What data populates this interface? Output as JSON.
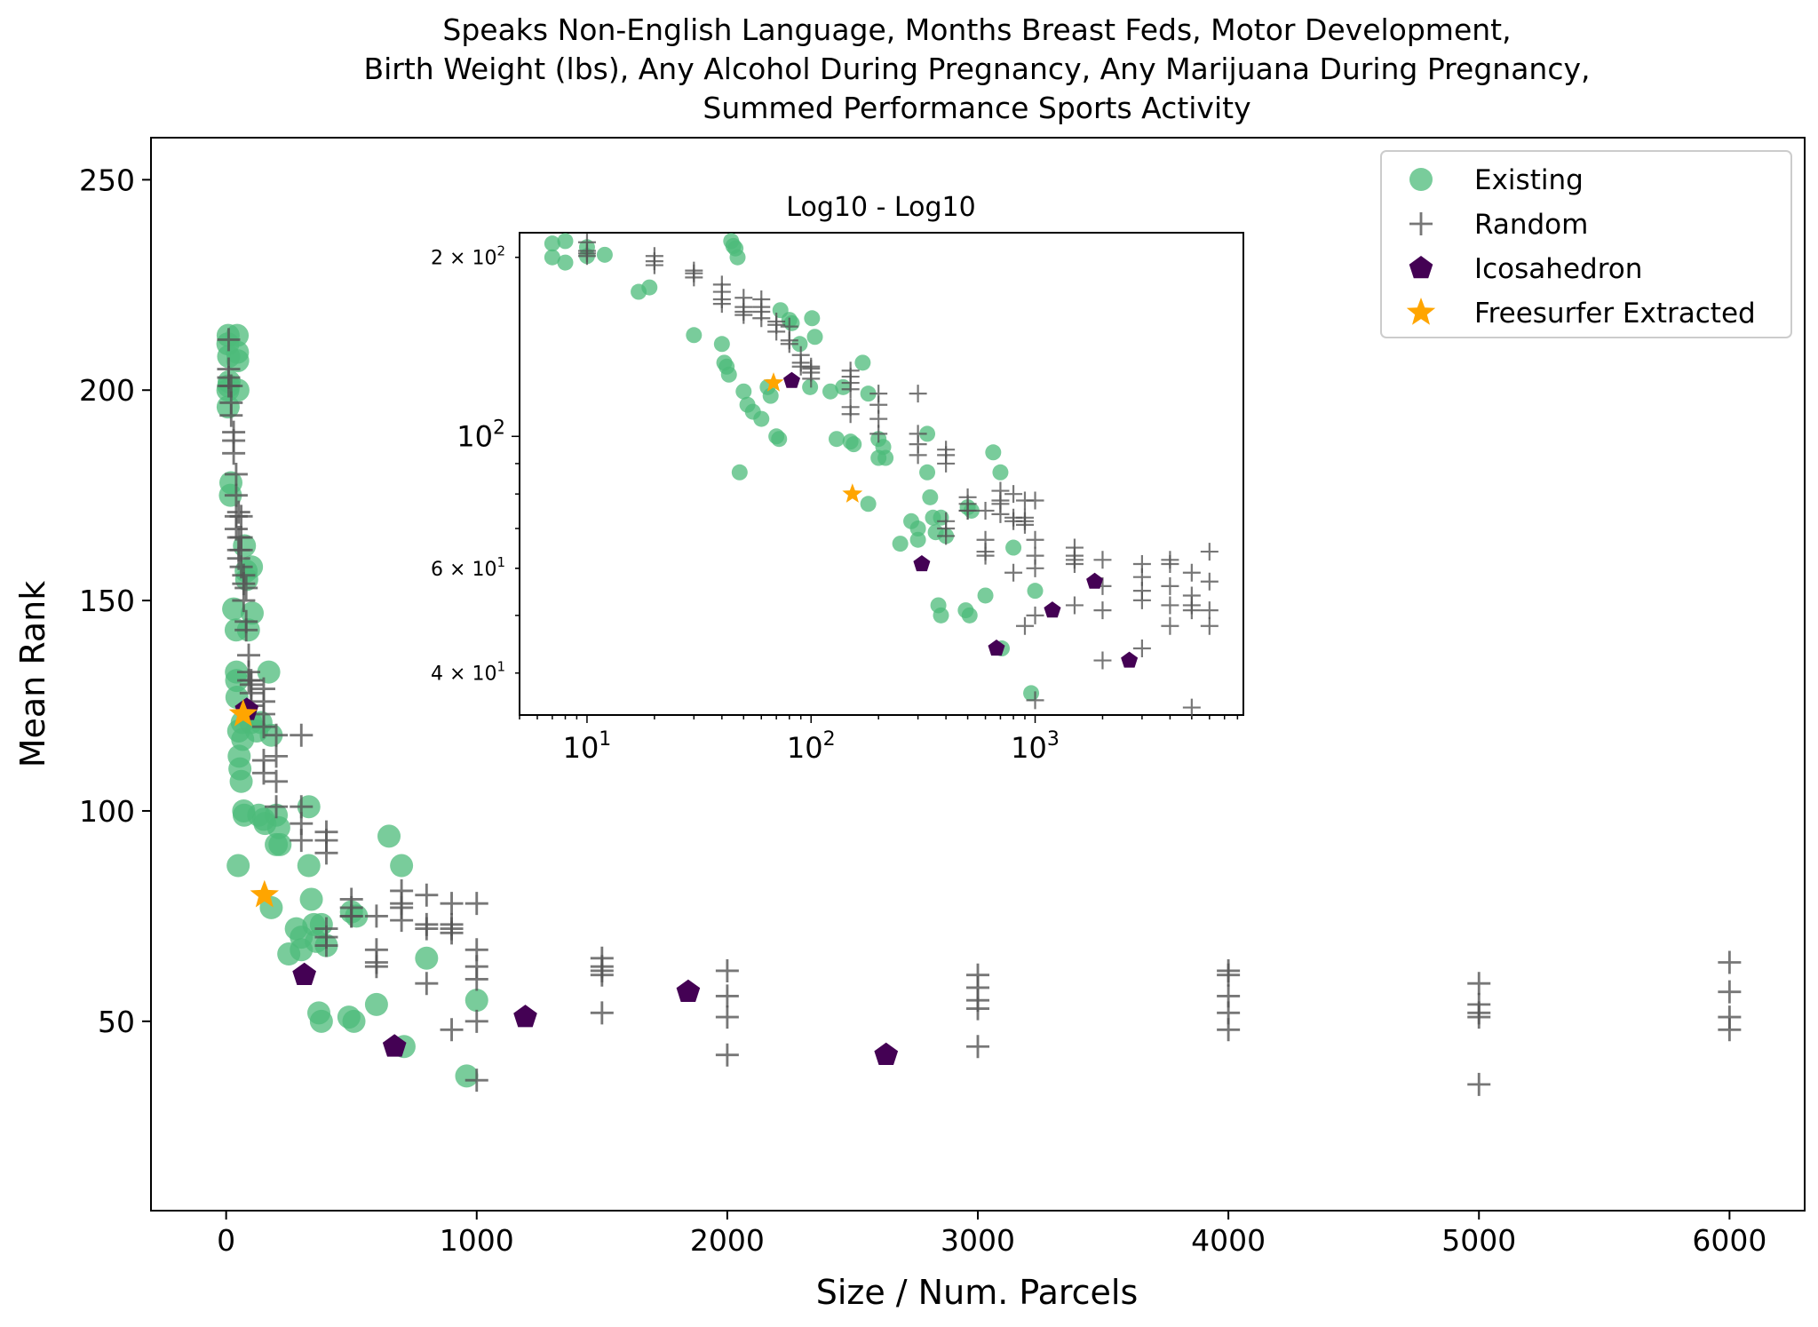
{
  "chart_data": {
    "type": "scatter",
    "title_lines": [
      "Speaks Non-English Language, Months Breast Feds, Motor Development,",
      "Birth Weight (lbs), Any Alcohol During Pregnancy, Any Marijuana During Pregnancy,",
      "Summed Performance Sports Activity"
    ],
    "xlabel": "Size / Num. Parcels",
    "ylabel": "Mean Rank",
    "xlim": [
      -300,
      6300
    ],
    "ylim": [
      5,
      260
    ],
    "xticks": [
      0,
      1000,
      2000,
      3000,
      4000,
      5000,
      6000
    ],
    "xtick_labels": [
      "0",
      "1000",
      "2000",
      "3000",
      "4000",
      "5000",
      "6000"
    ],
    "yticks": [
      50,
      100,
      150,
      200,
      250
    ],
    "ytick_labels": [
      "50",
      "100",
      "150",
      "200",
      "250"
    ],
    "legend_placement": "top-right",
    "grid": false,
    "series": [
      {
        "name": "Existing",
        "marker": "circle",
        "color": "#4cbb7a",
        "points": [
          [
            7,
            211
          ],
          [
            8,
            213
          ],
          [
            10,
            208
          ],
          [
            12,
            202
          ],
          [
            7,
            200
          ],
          [
            8,
            196
          ],
          [
            10,
            201
          ],
          [
            17,
            175
          ],
          [
            19,
            178
          ],
          [
            30,
            148
          ],
          [
            40,
            143
          ],
          [
            41,
            133
          ],
          [
            42,
            131
          ],
          [
            43,
            127
          ],
          [
            44,
            213
          ],
          [
            45,
            209
          ],
          [
            46,
            207
          ],
          [
            47,
            200
          ],
          [
            48,
            87
          ],
          [
            50,
            119
          ],
          [
            52,
            113
          ],
          [
            55,
            110
          ],
          [
            60,
            107
          ],
          [
            64,
            121
          ],
          [
            66,
            117
          ],
          [
            70,
            100
          ],
          [
            72,
            99
          ],
          [
            73,
            163
          ],
          [
            80,
            157
          ],
          [
            82,
            155
          ],
          [
            89,
            143
          ],
          [
            99,
            121
          ],
          [
            101,
            158
          ],
          [
            104,
            147
          ],
          [
            122,
            119
          ],
          [
            130,
            99
          ],
          [
            139,
            121
          ],
          [
            150,
            98
          ],
          [
            155,
            97
          ],
          [
            170,
            133
          ],
          [
            180,
            118
          ],
          [
            200,
            99
          ],
          [
            210,
            96
          ],
          [
            200,
            92
          ],
          [
            215,
            92
          ],
          [
            180,
            77
          ],
          [
            250,
            66
          ],
          [
            280,
            72
          ],
          [
            300,
            70
          ],
          [
            300,
            67
          ],
          [
            330,
            87
          ],
          [
            330,
            101
          ],
          [
            340,
            79
          ],
          [
            350,
            73
          ],
          [
            360,
            69
          ],
          [
            370,
            52
          ],
          [
            380,
            50
          ],
          [
            380,
            73
          ],
          [
            400,
            68
          ],
          [
            500,
            76
          ],
          [
            520,
            75
          ],
          [
            490,
            51
          ],
          [
            510,
            50
          ],
          [
            600,
            54
          ],
          [
            650,
            94
          ],
          [
            700,
            87
          ],
          [
            710,
            44
          ],
          [
            800,
            65
          ],
          [
            960,
            37
          ],
          [
            1000,
            55
          ]
        ]
      },
      {
        "name": "Random",
        "marker": "plus",
        "color": "#555555",
        "points": [
          [
            10,
            212
          ],
          [
            10,
            205
          ],
          [
            10,
            203
          ],
          [
            10,
            201
          ],
          [
            20,
            201
          ],
          [
            20,
            197
          ],
          [
            20,
            194
          ],
          [
            30,
            190
          ],
          [
            30,
            188
          ],
          [
            30,
            185
          ],
          [
            40,
            180
          ],
          [
            40,
            175
          ],
          [
            40,
            170
          ],
          [
            40,
            167
          ],
          [
            50,
            171
          ],
          [
            50,
            165
          ],
          [
            50,
            162
          ],
          [
            50,
            160
          ],
          [
            60,
            170
          ],
          [
            60,
            165
          ],
          [
            60,
            162
          ],
          [
            60,
            158
          ],
          [
            70,
            156
          ],
          [
            70,
            154
          ],
          [
            70,
            150
          ],
          [
            80,
            153
          ],
          [
            80,
            145
          ],
          [
            80,
            143
          ],
          [
            90,
            137
          ],
          [
            90,
            133
          ],
          [
            90,
            131
          ],
          [
            100,
            131
          ],
          [
            100,
            130
          ],
          [
            100,
            128
          ],
          [
            100,
            125
          ],
          [
            150,
            129
          ],
          [
            150,
            126
          ],
          [
            150,
            123
          ],
          [
            150,
            120
          ],
          [
            150,
            112
          ],
          [
            150,
            109
          ],
          [
            200,
            107
          ],
          [
            200,
            118
          ],
          [
            200,
            113
          ],
          [
            200,
            101
          ],
          [
            300,
            118
          ],
          [
            300,
            101
          ],
          [
            300,
            97
          ],
          [
            300,
            93
          ],
          [
            400,
            95
          ],
          [
            400,
            93
          ],
          [
            400,
            90
          ],
          [
            400,
            72
          ],
          [
            400,
            70
          ],
          [
            400,
            68
          ],
          [
            500,
            79
          ],
          [
            500,
            77
          ],
          [
            500,
            75
          ],
          [
            500,
            75
          ],
          [
            600,
            75
          ],
          [
            600,
            67
          ],
          [
            600,
            64
          ],
          [
            600,
            63
          ],
          [
            700,
            81
          ],
          [
            700,
            78
          ],
          [
            700,
            77
          ],
          [
            700,
            74
          ],
          [
            800,
            80
          ],
          [
            800,
            73
          ],
          [
            800,
            72
          ],
          [
            800,
            59
          ],
          [
            900,
            78
          ],
          [
            900,
            73
          ],
          [
            900,
            72
          ],
          [
            900,
            71
          ],
          [
            900,
            48
          ],
          [
            1000,
            78
          ],
          [
            1000,
            67
          ],
          [
            1000,
            63
          ],
          [
            1000,
            60
          ],
          [
            1000,
            50
          ],
          [
            1000,
            36
          ],
          [
            1500,
            65
          ],
          [
            1500,
            63
          ],
          [
            1500,
            62
          ],
          [
            1500,
            61
          ],
          [
            1500,
            52
          ],
          [
            2000,
            62
          ],
          [
            2000,
            56
          ],
          [
            2000,
            51
          ],
          [
            2000,
            42
          ],
          [
            3000,
            61
          ],
          [
            3000,
            58
          ],
          [
            3000,
            55
          ],
          [
            3000,
            53
          ],
          [
            3000,
            44
          ],
          [
            4000,
            62
          ],
          [
            4000,
            61
          ],
          [
            4000,
            56
          ],
          [
            4000,
            52
          ],
          [
            4000,
            48
          ],
          [
            5000,
            59
          ],
          [
            5000,
            54
          ],
          [
            5000,
            52
          ],
          [
            5000,
            51
          ],
          [
            5000,
            35
          ],
          [
            6000,
            64
          ],
          [
            6000,
            57
          ],
          [
            6000,
            51
          ],
          [
            6000,
            48
          ]
        ]
      },
      {
        "name": "Icosahedron",
        "marker": "pentagon",
        "color": "#440154",
        "points": [
          [
            82,
            124
          ],
          [
            312,
            61
          ],
          [
            672,
            44
          ],
          [
            1194,
            51
          ],
          [
            1844,
            57
          ],
          [
            2634,
            42
          ]
        ]
      },
      {
        "name": "Freesurfer Extracted",
        "marker": "star",
        "color": "#ffa500",
        "points": [
          [
            68,
            123
          ],
          [
            153,
            80
          ]
        ]
      }
    ],
    "inset": {
      "title": "Log10 - Log10",
      "xscale": "log",
      "yscale": "log",
      "xlim": [
        5,
        8500
      ],
      "ylim": [
        34,
        220
      ],
      "xticks": [
        10,
        100,
        1000
      ],
      "xtick_labels": [
        "10^1",
        "10^2",
        "10^3"
      ],
      "yticks": [
        40,
        60,
        100,
        200
      ],
      "ytick_labels": [
        "4 × 10^1",
        "6 × 10^1",
        "10^2",
        "2 × 10^2"
      ]
    }
  }
}
